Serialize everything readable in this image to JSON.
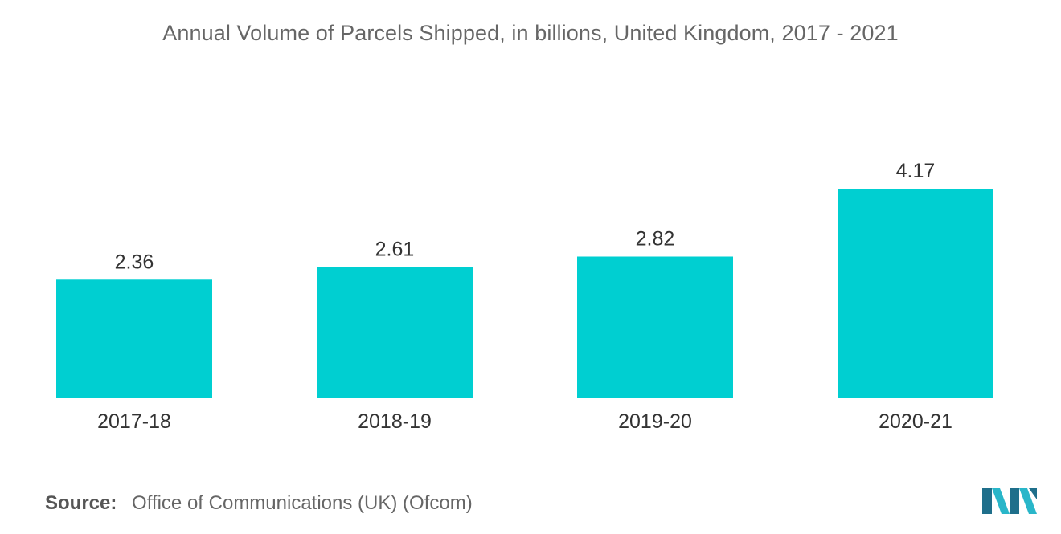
{
  "chart_data": {
    "type": "bar",
    "title": "Annual Volume of Parcels Shipped, in billions, United Kingdom, 2017 - 2021",
    "categories": [
      "2017-18",
      "2018-19",
      "2019-20",
      "2020-21"
    ],
    "values": [
      2.36,
      2.61,
      2.82,
      4.17
    ],
    "value_labels": [
      "2.36",
      "2.61",
      "2.82",
      "4.17"
    ],
    "xlabel": "",
    "ylabel": "",
    "ylim": [
      0,
      4.17
    ],
    "grid": false,
    "legend": "none",
    "bar_color": "#00cfd1"
  },
  "source": {
    "label": "Source:",
    "text": "Office of Communications (UK) (Ofcom)"
  },
  "colors": {
    "bar": "#00cfd1",
    "logo_dark": "#1f6f8b",
    "logo_light": "#29b6c9"
  },
  "icons": {
    "logo": "mordor-intelligence-logo"
  }
}
